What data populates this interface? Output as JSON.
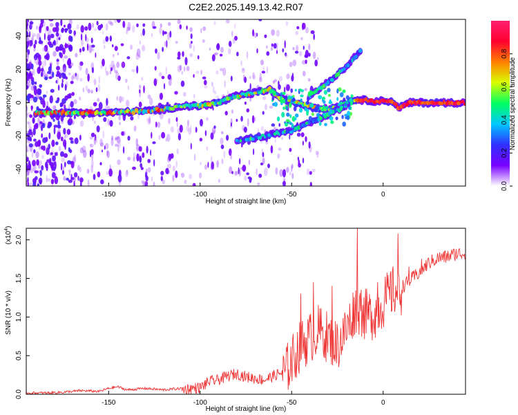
{
  "title": "C2E2.2025.149.13.42.R07",
  "colors": {
    "snr_line": "#ee3333",
    "axes": "#000000"
  },
  "colorbar": {
    "label": "Normalized spectral amplitude",
    "ticks": [
      "0.0",
      "0.2",
      "0.4",
      "0.6",
      "0.8"
    ],
    "range": [
      0,
      1
    ],
    "colormap": [
      "#ffffff",
      "#7a00ff",
      "#3030ff",
      "#00c8ff",
      "#00ff60",
      "#d8ff00",
      "#ff8000",
      "#ff0030",
      "#ff2070"
    ]
  },
  "chart_data": [
    {
      "type": "heatmap",
      "xlabel": "Height of straight line (km)",
      "ylabel": "Frequency (Hz)",
      "xlim": [
        -195,
        45
      ],
      "ylim": [
        -50,
        50
      ],
      "xticks": [
        "-150",
        "-100",
        "-50",
        "0"
      ],
      "yticks": [
        "-40",
        "-20",
        "0",
        "20",
        "40"
      ],
      "ridges": [
        {
          "name": "main",
          "points": [
            [
              -190,
              -6
            ],
            [
              -170,
              -6
            ],
            [
              -150,
              -6
            ],
            [
              -130,
              -5
            ],
            [
              -120,
              -4
            ],
            [
              -110,
              -2
            ],
            [
              -100,
              -2
            ],
            [
              -90,
              0
            ],
            [
              -80,
              4
            ],
            [
              -70,
              6
            ],
            [
              -62,
              8
            ],
            [
              -55,
              2
            ],
            [
              -48,
              0
            ],
            [
              -40,
              -2
            ],
            [
              -30,
              -4
            ],
            [
              -20,
              0
            ],
            [
              -15,
              2
            ],
            [
              -5,
              1
            ],
            [
              5,
              1
            ],
            [
              8,
              -3
            ],
            [
              15,
              0
            ],
            [
              25,
              0
            ],
            [
              45,
              0
            ]
          ]
        },
        {
          "name": "upper-branch",
          "points": [
            [
              -40,
              4
            ],
            [
              -33,
              10
            ],
            [
              -26,
              16
            ],
            [
              -20,
              22
            ],
            [
              -15,
              28
            ],
            [
              -12,
              32
            ]
          ]
        },
        {
          "name": "lower-branch",
          "points": [
            [
              -80,
              -23
            ],
            [
              -65,
              -20
            ],
            [
              -50,
              -17
            ],
            [
              -40,
              -12
            ],
            [
              -30,
              -7
            ],
            [
              -20,
              -2
            ]
          ]
        }
      ]
    },
    {
      "type": "line",
      "xlabel": "Height of straight line (km)",
      "ylabel": "SNR (10 * v/v)",
      "ymultiplier": "(x10",
      "ymultiplier_exp": "4",
      "ymultiplier_close": ")",
      "xlim": [
        -195,
        45
      ],
      "ylim": [
        0,
        2.15
      ],
      "xticks": [
        "-150",
        "-100",
        "-50",
        "0"
      ],
      "yticks": [
        "0.0",
        "0.5",
        "1.0",
        "1.5",
        "2.0"
      ],
      "series": [
        {
          "x": [
            -195,
            -185,
            -175,
            -165,
            -155,
            -150,
            -145,
            -140,
            -130,
            -120,
            -110,
            -100,
            -95,
            -90,
            -85,
            -80,
            -75,
            -70,
            -65,
            -60,
            -55,
            -50,
            -45,
            -40,
            -35,
            -30,
            -25,
            -20,
            -15,
            -10,
            -5,
            0,
            5,
            10,
            15,
            20,
            25,
            30,
            35,
            40,
            45
          ],
          "y": [
            0.02,
            0.02,
            0.03,
            0.05,
            0.04,
            0.08,
            0.1,
            0.06,
            0.08,
            0.06,
            0.08,
            0.1,
            0.18,
            0.2,
            0.25,
            0.28,
            0.24,
            0.22,
            0.2,
            0.25,
            0.3,
            0.5,
            0.7,
            0.8,
            0.9,
            0.8,
            0.7,
            0.9,
            1.2,
            1.1,
            1.1,
            1.25,
            1.4,
            1.4,
            1.5,
            1.6,
            1.72,
            1.78,
            1.8,
            1.84,
            1.84
          ]
        }
      ],
      "peaks": [
        [
          -45,
          1.3
        ],
        [
          -38,
          1.45
        ],
        [
          -28,
          1.4
        ],
        [
          -14,
          2.15
        ],
        [
          -12,
          1.35
        ],
        [
          -3,
          1.45
        ],
        [
          8,
          2.08
        ],
        [
          14,
          1.65
        ],
        [
          21,
          1.75
        ]
      ]
    }
  ]
}
